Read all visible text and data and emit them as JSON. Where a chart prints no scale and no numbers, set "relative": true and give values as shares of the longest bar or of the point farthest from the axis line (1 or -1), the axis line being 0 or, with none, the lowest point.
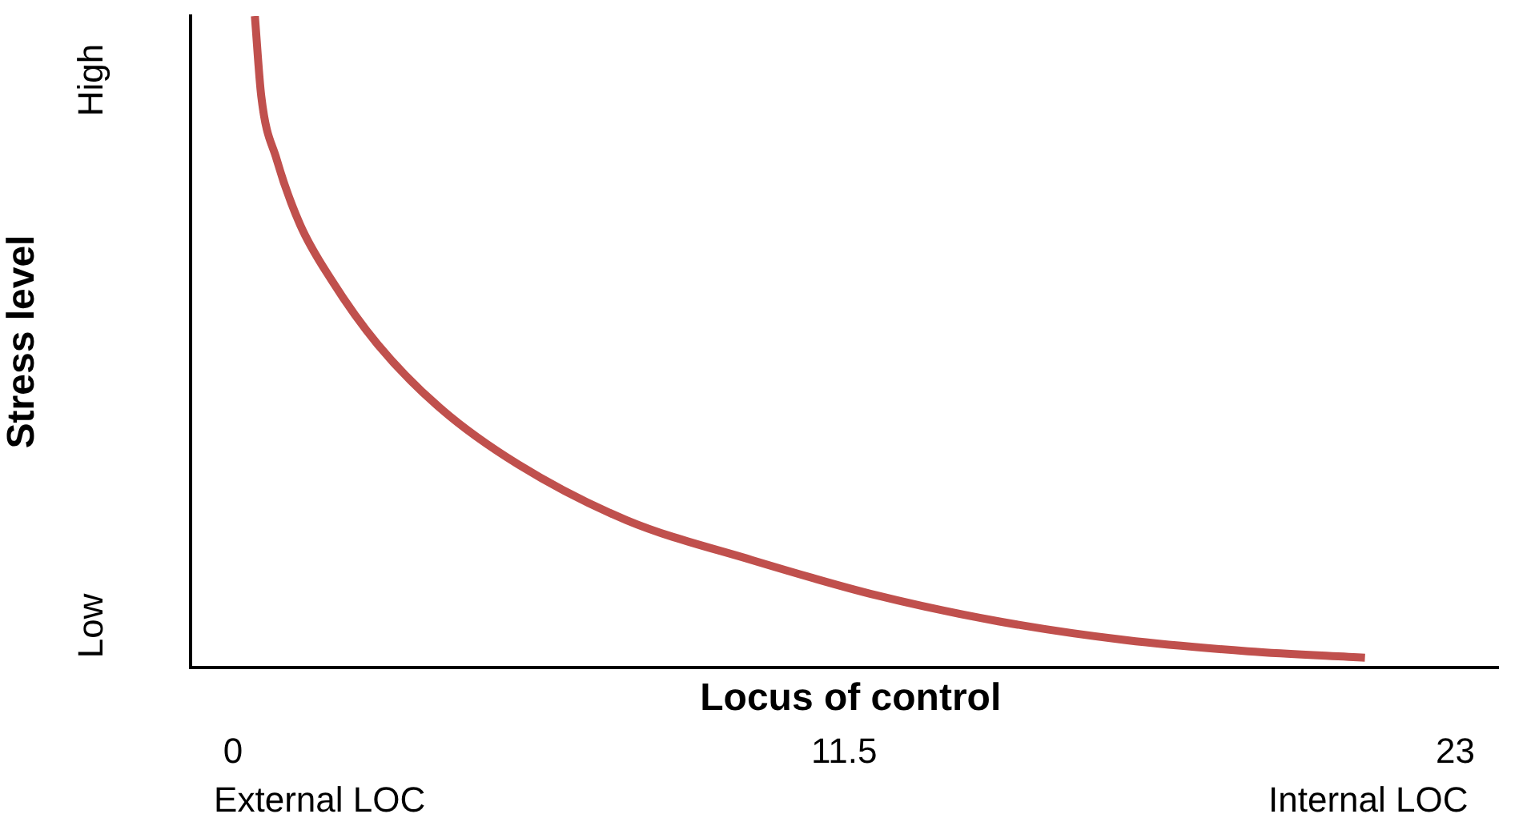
{
  "chart_data": {
    "type": "line",
    "xlabel": "Locus of control",
    "ylabel": "Stress level",
    "relative": true,
    "x": [
      0.41,
      0.53,
      0.82,
      1.26,
      1.85,
      2.72,
      3.9,
      5.36,
      7.41,
      9.76,
      12.1,
      14.4,
      16.8,
      19.1,
      21.3
    ],
    "series": [
      {
        "color": "#c0504d",
        "values": [
          1.0,
          0.877,
          0.78,
          0.68,
          0.595,
          0.496,
          0.398,
          0.312,
          0.226,
          0.165,
          0.111,
          0.071,
          0.042,
          0.025,
          0.015
        ]
      }
    ],
    "xlim": [
      -0.8,
      23.8
    ],
    "xticks": [
      0,
      11.5,
      23
    ],
    "grid": false,
    "legend": false,
    "marker": "none",
    "line_style": "solid",
    "annotations": [
      "High",
      "Low",
      "External LOC",
      "Internal LOC"
    ]
  }
}
